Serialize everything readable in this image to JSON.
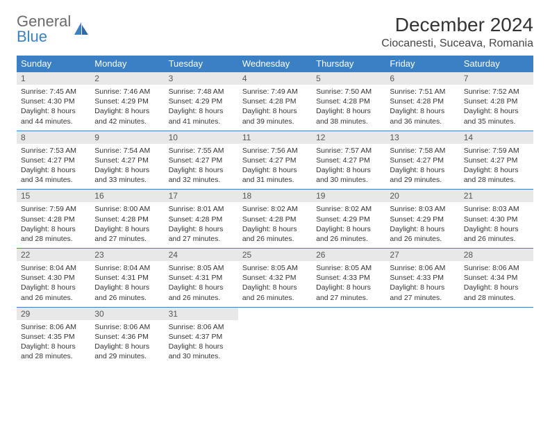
{
  "brand": {
    "part1": "General",
    "part2": "Blue"
  },
  "title": "December 2024",
  "location": "Ciocanesti, Suceava, Romania",
  "colors": {
    "header_bg": "#3b7fc4",
    "header_fg": "#ffffff",
    "daynum_bg": "#e8e8e8",
    "row_border": "#3b7fc4",
    "page_bg": "#ffffff",
    "text": "#333333"
  },
  "typography": {
    "title_fontsize": 28,
    "location_fontsize": 16,
    "dayheader_fontsize": 13,
    "daynum_fontsize": 12,
    "body_fontsize": 10.5
  },
  "day_headers": [
    "Sunday",
    "Monday",
    "Tuesday",
    "Wednesday",
    "Thursday",
    "Friday",
    "Saturday"
  ],
  "weeks": [
    [
      {
        "n": "1",
        "sr": "7:45 AM",
        "ss": "4:30 PM",
        "dl": "8 hours and 44 minutes."
      },
      {
        "n": "2",
        "sr": "7:46 AM",
        "ss": "4:29 PM",
        "dl": "8 hours and 42 minutes."
      },
      {
        "n": "3",
        "sr": "7:48 AM",
        "ss": "4:29 PM",
        "dl": "8 hours and 41 minutes."
      },
      {
        "n": "4",
        "sr": "7:49 AM",
        "ss": "4:28 PM",
        "dl": "8 hours and 39 minutes."
      },
      {
        "n": "5",
        "sr": "7:50 AM",
        "ss": "4:28 PM",
        "dl": "8 hours and 38 minutes."
      },
      {
        "n": "6",
        "sr": "7:51 AM",
        "ss": "4:28 PM",
        "dl": "8 hours and 36 minutes."
      },
      {
        "n": "7",
        "sr": "7:52 AM",
        "ss": "4:28 PM",
        "dl": "8 hours and 35 minutes."
      }
    ],
    [
      {
        "n": "8",
        "sr": "7:53 AM",
        "ss": "4:27 PM",
        "dl": "8 hours and 34 minutes."
      },
      {
        "n": "9",
        "sr": "7:54 AM",
        "ss": "4:27 PM",
        "dl": "8 hours and 33 minutes."
      },
      {
        "n": "10",
        "sr": "7:55 AM",
        "ss": "4:27 PM",
        "dl": "8 hours and 32 minutes."
      },
      {
        "n": "11",
        "sr": "7:56 AM",
        "ss": "4:27 PM",
        "dl": "8 hours and 31 minutes."
      },
      {
        "n": "12",
        "sr": "7:57 AM",
        "ss": "4:27 PM",
        "dl": "8 hours and 30 minutes."
      },
      {
        "n": "13",
        "sr": "7:58 AM",
        "ss": "4:27 PM",
        "dl": "8 hours and 29 minutes."
      },
      {
        "n": "14",
        "sr": "7:59 AM",
        "ss": "4:27 PM",
        "dl": "8 hours and 28 minutes."
      }
    ],
    [
      {
        "n": "15",
        "sr": "7:59 AM",
        "ss": "4:28 PM",
        "dl": "8 hours and 28 minutes."
      },
      {
        "n": "16",
        "sr": "8:00 AM",
        "ss": "4:28 PM",
        "dl": "8 hours and 27 minutes."
      },
      {
        "n": "17",
        "sr": "8:01 AM",
        "ss": "4:28 PM",
        "dl": "8 hours and 27 minutes."
      },
      {
        "n": "18",
        "sr": "8:02 AM",
        "ss": "4:28 PM",
        "dl": "8 hours and 26 minutes."
      },
      {
        "n": "19",
        "sr": "8:02 AM",
        "ss": "4:29 PM",
        "dl": "8 hours and 26 minutes."
      },
      {
        "n": "20",
        "sr": "8:03 AM",
        "ss": "4:29 PM",
        "dl": "8 hours and 26 minutes."
      },
      {
        "n": "21",
        "sr": "8:03 AM",
        "ss": "4:30 PM",
        "dl": "8 hours and 26 minutes."
      }
    ],
    [
      {
        "n": "22",
        "sr": "8:04 AM",
        "ss": "4:30 PM",
        "dl": "8 hours and 26 minutes."
      },
      {
        "n": "23",
        "sr": "8:04 AM",
        "ss": "4:31 PM",
        "dl": "8 hours and 26 minutes."
      },
      {
        "n": "24",
        "sr": "8:05 AM",
        "ss": "4:31 PM",
        "dl": "8 hours and 26 minutes."
      },
      {
        "n": "25",
        "sr": "8:05 AM",
        "ss": "4:32 PM",
        "dl": "8 hours and 26 minutes."
      },
      {
        "n": "26",
        "sr": "8:05 AM",
        "ss": "4:33 PM",
        "dl": "8 hours and 27 minutes."
      },
      {
        "n": "27",
        "sr": "8:06 AM",
        "ss": "4:33 PM",
        "dl": "8 hours and 27 minutes."
      },
      {
        "n": "28",
        "sr": "8:06 AM",
        "ss": "4:34 PM",
        "dl": "8 hours and 28 minutes."
      }
    ],
    [
      {
        "n": "29",
        "sr": "8:06 AM",
        "ss": "4:35 PM",
        "dl": "8 hours and 28 minutes."
      },
      {
        "n": "30",
        "sr": "8:06 AM",
        "ss": "4:36 PM",
        "dl": "8 hours and 29 minutes."
      },
      {
        "n": "31",
        "sr": "8:06 AM",
        "ss": "4:37 PM",
        "dl": "8 hours and 30 minutes."
      },
      null,
      null,
      null,
      null
    ]
  ],
  "labels": {
    "sunrise": "Sunrise:",
    "sunset": "Sunset:",
    "daylight": "Daylight:"
  }
}
